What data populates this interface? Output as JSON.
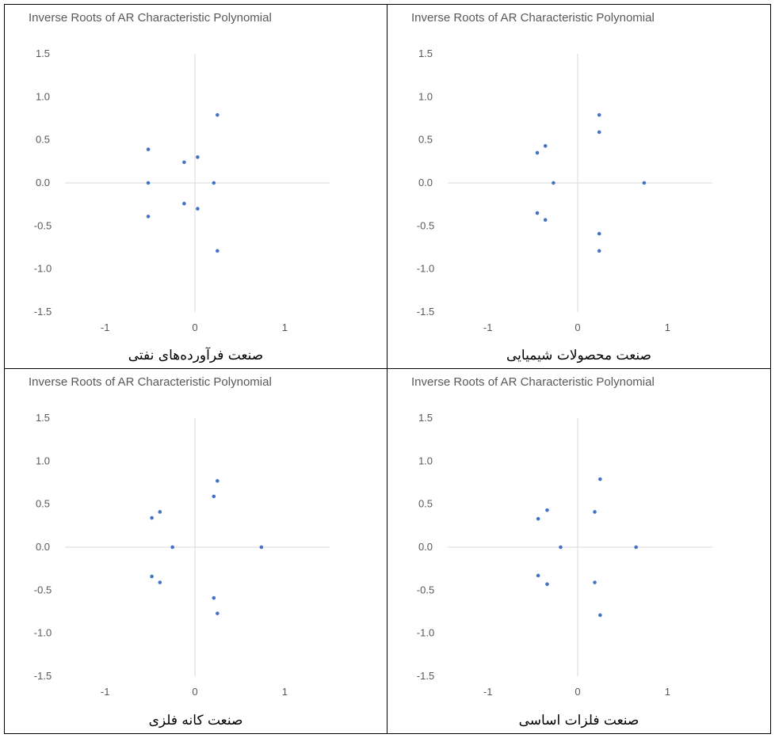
{
  "colors": {
    "marker": "#4472C4",
    "axis": "#D9D9D9",
    "text": "#595959"
  },
  "chart_data": [
    {
      "type": "scatter",
      "title": "Inverse Roots of AR Characteristic Polynomial",
      "caption": "صنعت فرآورده‌های نفتی",
      "xlim": [
        -1.5,
        1.5
      ],
      "ylim": [
        -1.5,
        1.5
      ],
      "xticks": [
        "-1",
        "0",
        "1"
      ],
      "yticks": [
        "1.5",
        "1.0",
        "0.5",
        "0.0",
        "-0.5",
        "-1.0",
        "-1.5"
      ],
      "grid": false,
      "points": [
        {
          "x": 0.25,
          "y": 0.79
        },
        {
          "x": -0.52,
          "y": 0.39
        },
        {
          "x": -0.12,
          "y": 0.24
        },
        {
          "x": 0.03,
          "y": 0.3
        },
        {
          "x": -0.52,
          "y": 0.0
        },
        {
          "x": 0.21,
          "y": 0.0
        },
        {
          "x": -0.12,
          "y": -0.24
        },
        {
          "x": 0.03,
          "y": -0.3
        },
        {
          "x": -0.52,
          "y": -0.39
        },
        {
          "x": 0.25,
          "y": -0.79
        }
      ]
    },
    {
      "type": "scatter",
      "title": "Inverse Roots of AR Characteristic Polynomial",
      "caption": "صنعت محصولات شیمیایی",
      "xlim": [
        -1.5,
        1.5
      ],
      "ylim": [
        -1.5,
        1.5
      ],
      "xticks": [
        "-1",
        "0",
        "1"
      ],
      "yticks": [
        "1.5",
        "1.0",
        "0.5",
        "0.0",
        "-0.5",
        "-1.0",
        "-1.5"
      ],
      "grid": false,
      "points": [
        {
          "x": 0.24,
          "y": 0.79
        },
        {
          "x": 0.24,
          "y": 0.59
        },
        {
          "x": -0.36,
          "y": 0.43
        },
        {
          "x": -0.45,
          "y": 0.35
        },
        {
          "x": -0.27,
          "y": 0.0
        },
        {
          "x": 0.74,
          "y": 0.0
        },
        {
          "x": -0.45,
          "y": -0.35
        },
        {
          "x": -0.36,
          "y": -0.43
        },
        {
          "x": 0.24,
          "y": -0.59
        },
        {
          "x": 0.24,
          "y": -0.79
        }
      ]
    },
    {
      "type": "scatter",
      "title": "Inverse Roots of AR Characteristic Polynomial",
      "caption": "صنعت کانه فلزی",
      "xlim": [
        -1.5,
        1.5
      ],
      "ylim": [
        -1.5,
        1.5
      ],
      "xticks": [
        "-1",
        "0",
        "1"
      ],
      "yticks": [
        "1.5",
        "1.0",
        "0.5",
        "0.0",
        "-0.5",
        "-1.0",
        "-1.5"
      ],
      "grid": false,
      "points": [
        {
          "x": 0.25,
          "y": 0.77
        },
        {
          "x": 0.21,
          "y": 0.59
        },
        {
          "x": -0.39,
          "y": 0.41
        },
        {
          "x": -0.48,
          "y": 0.34
        },
        {
          "x": -0.25,
          "y": 0.0
        },
        {
          "x": 0.74,
          "y": 0.0
        },
        {
          "x": -0.48,
          "y": -0.34
        },
        {
          "x": -0.39,
          "y": -0.41
        },
        {
          "x": 0.21,
          "y": -0.59
        },
        {
          "x": 0.25,
          "y": -0.77
        }
      ]
    },
    {
      "type": "scatter",
      "title": "Inverse Roots of AR Characteristic Polynomial",
      "caption": "صنعت فلزات اساسی",
      "xlim": [
        -1.5,
        1.5
      ],
      "ylim": [
        -1.5,
        1.5
      ],
      "xticks": [
        "-1",
        "0",
        "1"
      ],
      "yticks": [
        "1.5",
        "1.0",
        "0.5",
        "0.0",
        "-0.5",
        "-1.0",
        "-1.5"
      ],
      "grid": false,
      "points": [
        {
          "x": 0.25,
          "y": 0.79
        },
        {
          "x": 0.19,
          "y": 0.41
        },
        {
          "x": -0.34,
          "y": 0.43
        },
        {
          "x": -0.44,
          "y": 0.33
        },
        {
          "x": -0.19,
          "y": 0.0
        },
        {
          "x": 0.65,
          "y": 0.0
        },
        {
          "x": -0.44,
          "y": -0.33
        },
        {
          "x": -0.34,
          "y": -0.43
        },
        {
          "x": 0.19,
          "y": -0.41
        },
        {
          "x": 0.25,
          "y": -0.79
        }
      ]
    }
  ]
}
